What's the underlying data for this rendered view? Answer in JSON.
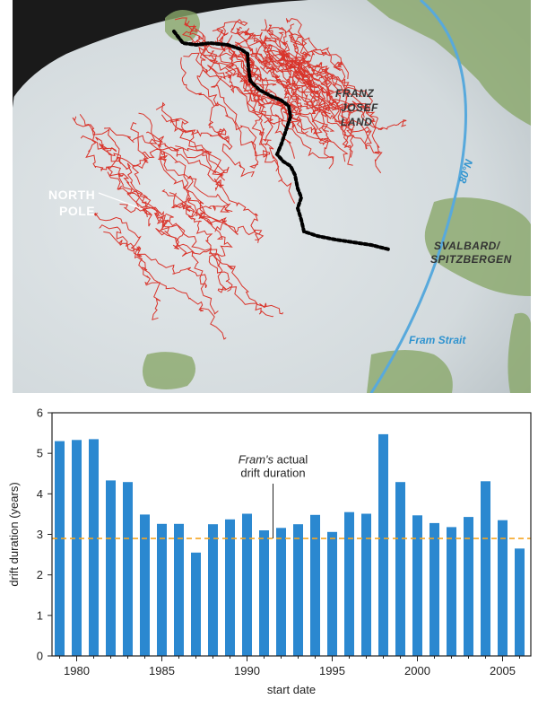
{
  "map": {
    "labels": {
      "franz_josef": [
        "FRANZ",
        "JOSEF",
        "LAND"
      ],
      "svalbard": [
        "SVALBARD/",
        "SPITZBERGEN"
      ],
      "north_pole": [
        "NORTH",
        "POLE"
      ],
      "latitude": "80°N",
      "fram_strait": "Fram Strait"
    },
    "colors": {
      "ocean_ice": "#d9dfe2",
      "land": "#8aa86a",
      "drift_tracks": "#d9342b",
      "fram_route": "#000000",
      "latitude_circle": "#58a9dc",
      "space": "#1a1a1a"
    }
  },
  "chart_data": {
    "type": "bar",
    "xlabel": "start date",
    "ylabel": "drift duration (years)",
    "ylim": [
      0,
      6
    ],
    "yticks": [
      "0",
      "1",
      "2",
      "3",
      "4",
      "5",
      "6"
    ],
    "xticks": [
      "1980",
      "1985",
      "1990",
      "1995",
      "2000",
      "2005"
    ],
    "categories": [
      1979,
      1980,
      1981,
      1982,
      1983,
      1984,
      1985,
      1986,
      1987,
      1988,
      1989,
      1990,
      1991,
      1992,
      1993,
      1994,
      1995,
      1996,
      1997,
      1998,
      1999,
      2000,
      2001,
      2002,
      2003,
      2004,
      2005,
      2006
    ],
    "values": [
      5.3,
      5.33,
      5.35,
      4.33,
      4.29,
      3.49,
      3.26,
      3.26,
      2.55,
      3.25,
      3.37,
      3.51,
      3.1,
      3.16,
      3.25,
      3.48,
      3.06,
      3.55,
      3.51,
      5.47,
      4.29,
      3.47,
      3.28,
      3.18,
      3.43,
      4.31,
      3.35,
      2.65
    ],
    "reference_line": {
      "value": 2.9,
      "label_italic": "Fram's",
      "label_rest": " actual",
      "label_line2": "drift duration"
    },
    "colors": {
      "bar": "#2b88d0",
      "reference": "#f5a623",
      "axis": "#222222"
    }
  }
}
